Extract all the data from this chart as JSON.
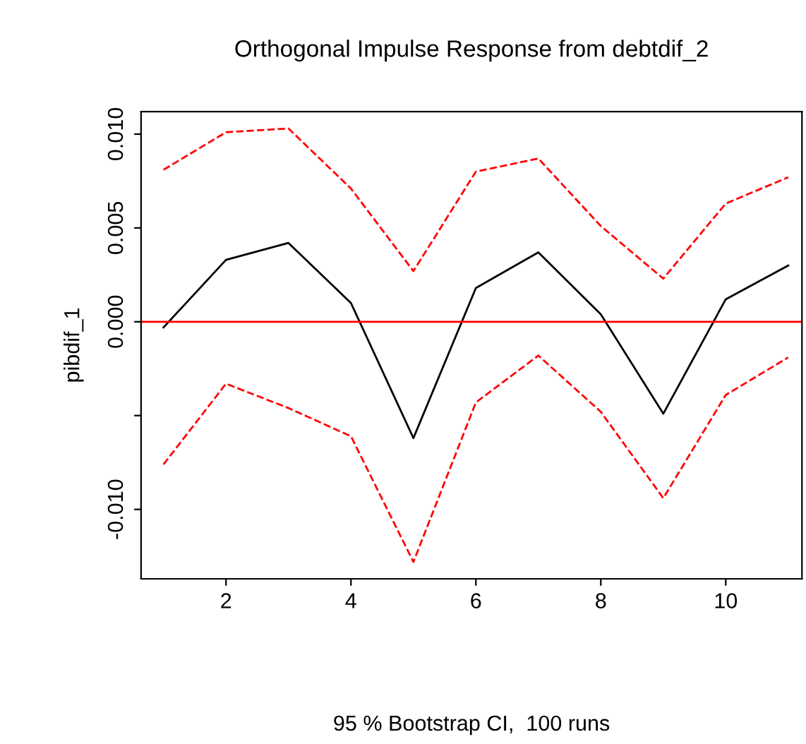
{
  "chart_data": {
    "type": "line",
    "title": "Orthogonal Impulse Response from debtdif_2",
    "annotations": [
      "95 % Bootstrap CI,  100 runs"
    ],
    "ylabel": "pibdif_1",
    "x": [
      1,
      2,
      3,
      4,
      5,
      6,
      7,
      8,
      9,
      10,
      11
    ],
    "series": [
      {
        "color": "#000000",
        "line_style": "solid",
        "values": [
          -0.0003,
          0.0033,
          0.0042,
          0.001,
          -0.0062,
          0.0018,
          0.0037,
          0.0004,
          -0.0049,
          0.0012,
          0.003
        ]
      },
      {
        "color": "#ff0000",
        "line_style": "dashed",
        "values": [
          0.0081,
          0.0101,
          0.0103,
          0.0071,
          0.0027,
          0.008,
          0.0087,
          0.0051,
          0.0023,
          0.0063,
          0.0077
        ]
      },
      {
        "color": "#ff0000",
        "line_style": "dashed",
        "values": [
          -0.0076,
          -0.0033,
          -0.0046,
          -0.0061,
          -0.0128,
          -0.0043,
          -0.0018,
          -0.0048,
          -0.0094,
          -0.0039,
          -0.0019
        ]
      }
    ],
    "xlim": [
      0.64,
      11.22
    ],
    "ylim": [
      -0.0137,
      0.0112
    ],
    "xticks": [
      2,
      4,
      6,
      8,
      10
    ],
    "yticks": [
      {
        "value": -0.01,
        "label": "-0.010"
      },
      {
        "value": -0.005,
        "label": null
      },
      {
        "value": 0.0,
        "label": "0.000"
      },
      {
        "value": 0.005,
        "label": "0.005"
      },
      {
        "value": 0.01,
        "label": "0.010"
      }
    ],
    "ref_lines": [
      {
        "axis": "y",
        "value": 0,
        "color": "#ff0000"
      }
    ],
    "grid": false,
    "legend": false,
    "marker": "none"
  }
}
